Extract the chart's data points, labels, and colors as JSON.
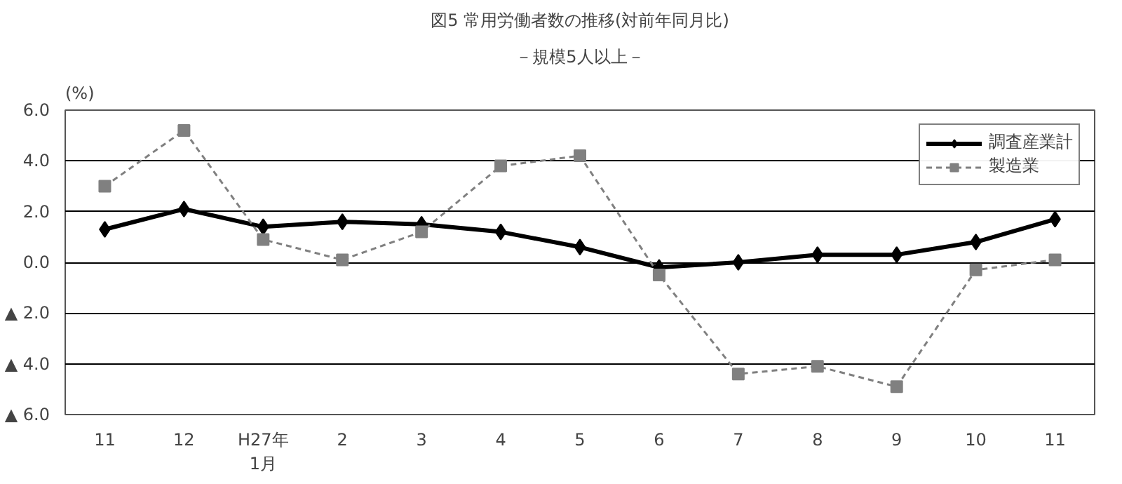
{
  "chart_data": {
    "type": "line",
    "title": "図5 常用労働者数の推移(対前年同月比)",
    "subtitle": "－規模5人以上－",
    "ylabel": "(%)",
    "categories": [
      "11",
      "12",
      "H27年\n1月",
      "2",
      "3",
      "4",
      "5",
      "6",
      "7",
      "8",
      "9",
      "10",
      "11"
    ],
    "series": [
      {
        "name": "調査産業計",
        "color": "#000000",
        "marker": "diamond",
        "line_style": "solid",
        "values": [
          1.3,
          2.1,
          1.4,
          1.6,
          1.5,
          1.2,
          0.6,
          -0.2,
          0.0,
          0.3,
          0.3,
          0.8,
          1.7
        ]
      },
      {
        "name": "製造業",
        "color": "#808080",
        "marker": "square",
        "line_style": "dashed",
        "values": [
          3.0,
          5.2,
          0.9,
          0.1,
          1.2,
          3.8,
          4.2,
          -0.5,
          -4.4,
          -4.1,
          -4.9,
          -0.3,
          0.1
        ]
      }
    ],
    "ylim": [
      -6,
      6
    ],
    "yticks": [
      {
        "value": 6,
        "label": "6.0"
      },
      {
        "value": 4,
        "label": "4.0"
      },
      {
        "value": 2,
        "label": "2.0"
      },
      {
        "value": 0,
        "label": "0.0"
      },
      {
        "value": -2,
        "label": "▲ 2.0"
      },
      {
        "value": -4,
        "label": "▲ 4.0"
      },
      {
        "value": -6,
        "label": "▲ 6.0"
      }
    ],
    "grid": "y",
    "legend": "top right"
  }
}
